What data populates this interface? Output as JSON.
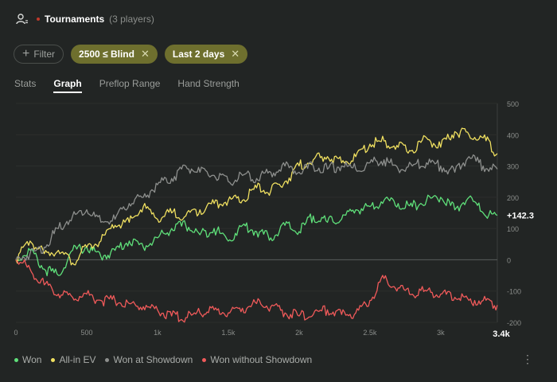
{
  "header": {
    "title": "Tournaments",
    "subtitle": "(3 players)"
  },
  "filters": {
    "add_label": "Filter",
    "chips": [
      {
        "label": "2500 ≤ Blind"
      },
      {
        "label": "Last 2 days"
      }
    ]
  },
  "tabs": [
    {
      "label": "Stats"
    },
    {
      "label": "Graph"
    },
    {
      "label": "Preflop Range"
    },
    {
      "label": "Hand Strength"
    }
  ],
  "active_tab": "Graph",
  "colors": {
    "won": "#5fe07a",
    "allin_ev": "#f0e060",
    "showdown": "#8d8f8d",
    "no_showdown": "#f05a5a",
    "chip_active": "#6e6f2e"
  },
  "chart_data": {
    "type": "line",
    "x_ticks": [
      "0",
      "500",
      "1k",
      "1.5k",
      "2k",
      "2.5k",
      "3k"
    ],
    "x_end_label": "3.4k",
    "y_ticks": [
      "500",
      "400",
      "300",
      "200",
      "100",
      "0",
      "-100",
      "-200"
    ],
    "xlim": [
      0,
      3400
    ],
    "ylim": [
      -200,
      500
    ],
    "current_value_label": "+142.3",
    "series": [
      {
        "name": "Won",
        "color": "#5fe07a",
        "x": [
          0,
          100,
          200,
          300,
          400,
          500,
          600,
          700,
          800,
          900,
          1000,
          1100,
          1200,
          1300,
          1400,
          1500,
          1600,
          1700,
          1800,
          1900,
          2000,
          2100,
          2200,
          2300,
          2400,
          2500,
          2600,
          2700,
          2800,
          2900,
          3000,
          3100,
          3200,
          3300,
          3400
        ],
        "y": [
          0,
          30,
          -30,
          -50,
          30,
          40,
          10,
          30,
          60,
          40,
          70,
          100,
          110,
          80,
          100,
          60,
          110,
          90,
          70,
          110,
          90,
          140,
          120,
          130,
          160,
          170,
          190,
          180,
          170,
          190,
          200,
          160,
          200,
          150,
          142
        ]
      },
      {
        "name": "All-in EV",
        "color": "#f0e060",
        "x": [
          0,
          100,
          200,
          300,
          400,
          500,
          600,
          700,
          800,
          900,
          1000,
          1100,
          1200,
          1300,
          1400,
          1500,
          1600,
          1700,
          1800,
          1900,
          2000,
          2100,
          2200,
          2300,
          2400,
          2500,
          2600,
          2700,
          2800,
          2900,
          3000,
          3100,
          3200,
          3300,
          3400
        ],
        "y": [
          0,
          60,
          20,
          30,
          -10,
          40,
          60,
          110,
          120,
          170,
          130,
          150,
          140,
          160,
          180,
          190,
          190,
          230,
          220,
          250,
          300,
          320,
          330,
          310,
          330,
          370,
          380,
          360,
          350,
          390,
          360,
          410,
          400,
          390,
          340
        ]
      },
      {
        "name": "Won at Showdown",
        "color": "#8d8f8d",
        "x": [
          0,
          100,
          200,
          300,
          400,
          500,
          600,
          700,
          800,
          900,
          1000,
          1100,
          1200,
          1300,
          1400,
          1500,
          1600,
          1700,
          1800,
          1900,
          2000,
          2100,
          2200,
          2300,
          2400,
          2500,
          2600,
          2700,
          2800,
          2900,
          3000,
          3100,
          3200,
          3300,
          3400
        ],
        "y": [
          0,
          20,
          40,
          100,
          140,
          160,
          120,
          130,
          180,
          200,
          240,
          260,
          300,
          280,
          270,
          250,
          270,
          260,
          280,
          300,
          280,
          300,
          290,
          300,
          290,
          310,
          320,
          290,
          300,
          310,
          300,
          280,
          330,
          300,
          290
        ]
      },
      {
        "name": "Won without Showdown",
        "color": "#f05a5a",
        "x": [
          0,
          100,
          200,
          300,
          400,
          500,
          600,
          700,
          800,
          900,
          1000,
          1100,
          1200,
          1300,
          1400,
          1500,
          1600,
          1700,
          1800,
          1900,
          2000,
          2100,
          2200,
          2300,
          2400,
          2500,
          2600,
          2700,
          2800,
          2900,
          3000,
          3100,
          3200,
          3300,
          3400
        ],
        "y": [
          0,
          -30,
          -80,
          -110,
          -120,
          -110,
          -130,
          -130,
          -140,
          -150,
          -160,
          -180,
          -185,
          -170,
          -160,
          -170,
          -155,
          -140,
          -150,
          -170,
          -180,
          -175,
          -160,
          -175,
          -170,
          -130,
          -60,
          -90,
          -110,
          -100,
          -110,
          -120,
          -130,
          -130,
          -145
        ]
      }
    ],
    "grid": true
  },
  "legend_placement": "bottom-left"
}
